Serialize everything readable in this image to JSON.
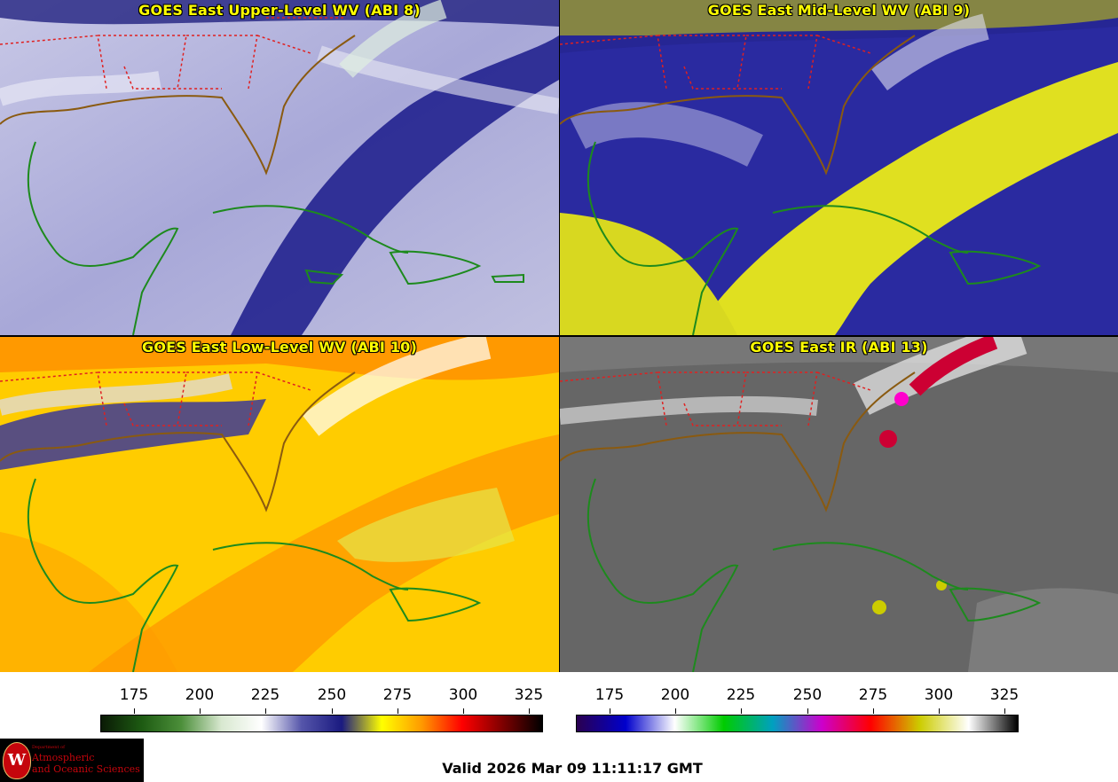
{
  "panels": [
    {
      "title": "GOES East Upper-Level WV (ABI 8)"
    },
    {
      "title": "GOES East Mid-Level WV (ABI 9)"
    },
    {
      "title": "GOES East Low-Level WV (ABI 10)"
    },
    {
      "title": "GOES East IR (ABI 13)"
    }
  ],
  "colorbar_wv": {
    "ticks": [
      "175",
      "200",
      "225",
      "250",
      "275",
      "300",
      "325"
    ],
    "colors": [
      "#0a1a05",
      "#1d5a12",
      "#4c8f3a",
      "#d8e8d0",
      "#ffffff",
      "#5555aa",
      "#1a1a80",
      "#ffff00",
      "#ff9900",
      "#ff0000",
      "#800000",
      "#000000"
    ]
  },
  "colorbar_ir": {
    "ticks": [
      "175",
      "200",
      "225",
      "250",
      "275",
      "300",
      "325"
    ],
    "colors": [
      "#2a0050",
      "#0000cc",
      "#ffffff",
      "#00cc00",
      "#00a0c0",
      "#cc00cc",
      "#ff0000",
      "#cccc00",
      "#ffffff",
      "#000000"
    ]
  },
  "logo": {
    "dept": "Department of",
    "line1": "Atmospheric",
    "line2": "and Oceanic Sciences",
    "seal": "W"
  },
  "valid_text": "Valid 2026 Mar 09 11:11:17 GMT"
}
